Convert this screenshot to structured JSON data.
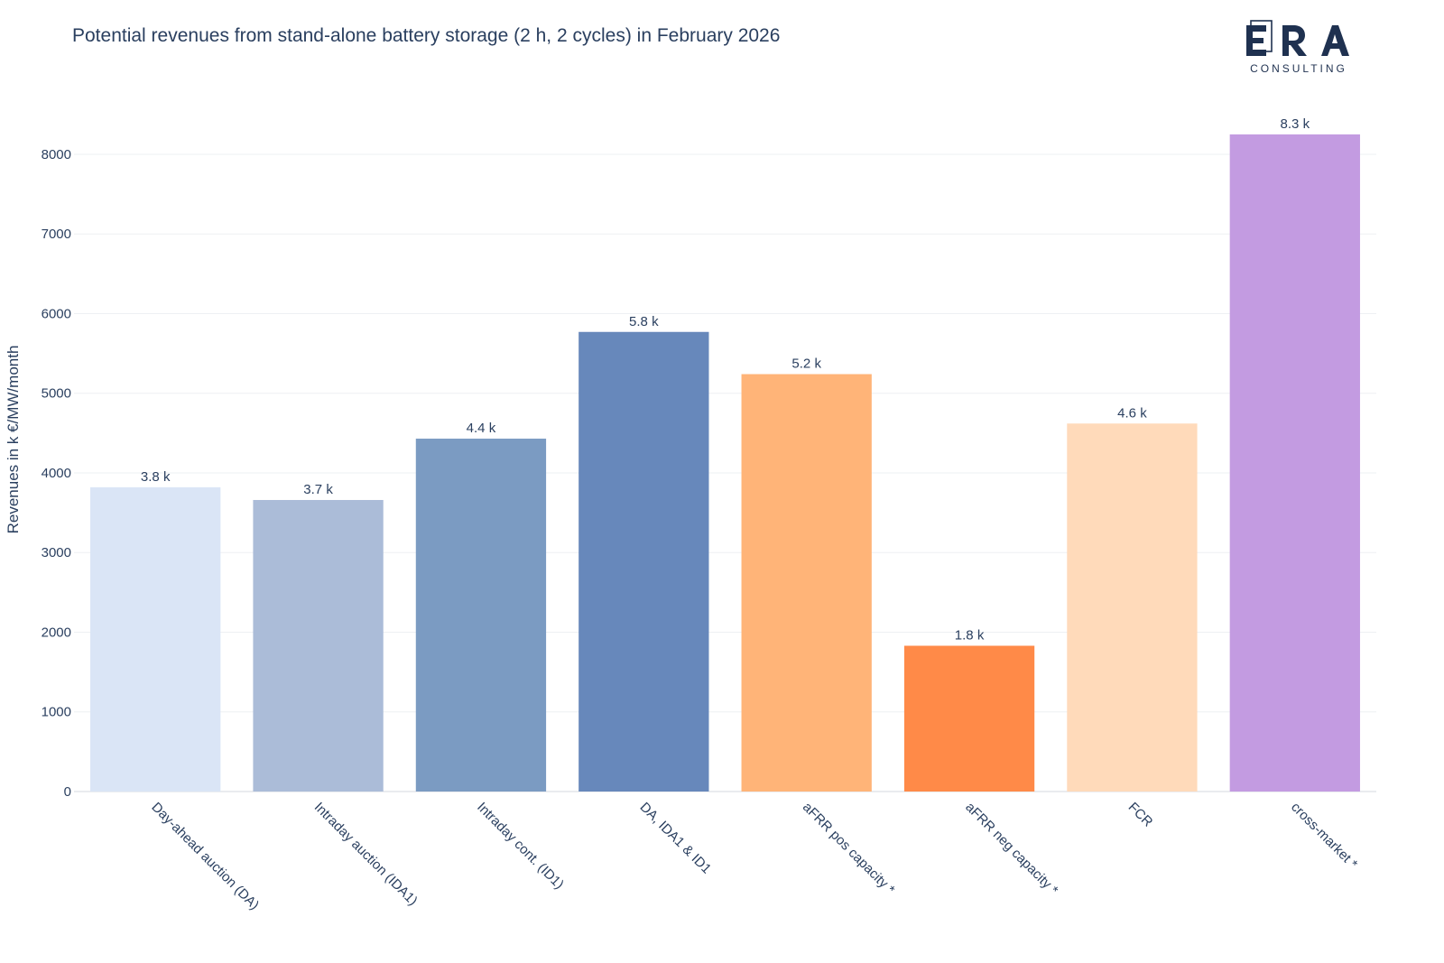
{
  "chart_data": {
    "type": "bar",
    "title": "Potential revenues from stand-alone battery storage (2 h, 2 cycles) in February 2026",
    "xlabel": "",
    "ylabel": "Revenues in k €/MW/month",
    "categories": [
      "Day-ahead auction (DA)",
      "Intraday auction (IDA1)",
      "Intraday cont. (ID1)",
      "DA, IDA1 & ID1",
      "aFRR pos capacity *",
      "aFRR neg capacity *",
      "FCR",
      "cross-market *"
    ],
    "values": [
      3820,
      3660,
      4430,
      5770,
      5240,
      1830,
      4620,
      8250
    ],
    "data_labels": [
      "3.8 k",
      "3.7 k",
      "4.4 k",
      "5.8 k",
      "5.2 k",
      "1.8 k",
      "4.6 k",
      "8.3 k"
    ],
    "colors": [
      "#dae5f6",
      "#abbcd8",
      "#7b9bc2",
      "#6788bb",
      "#ffb478",
      "#ff8a48",
      "#ffdaba",
      "#c39be1"
    ],
    "ylim": [
      0,
      8600
    ],
    "yticks": [
      0,
      1000,
      2000,
      3000,
      4000,
      5000,
      6000,
      7000,
      8000
    ],
    "grid": true,
    "legend": "none"
  },
  "logo": {
    "name": "ERA",
    "subtitle": "CONSULTING",
    "color": "#1f3150"
  }
}
